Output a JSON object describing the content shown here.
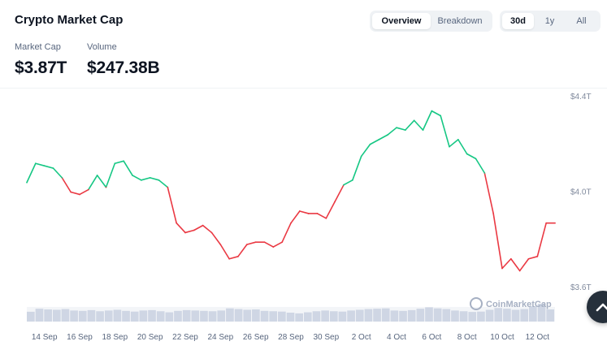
{
  "header": {
    "title": "Crypto Market Cap"
  },
  "view_tabs": [
    {
      "label": "Overview",
      "active": true
    },
    {
      "label": "Breakdown",
      "active": false
    }
  ],
  "range_tabs": [
    {
      "label": "30d",
      "active": true
    },
    {
      "label": "1y",
      "active": false
    },
    {
      "label": "All",
      "active": false
    }
  ],
  "stats": {
    "market_cap": {
      "label": "Market Cap",
      "value": "$3.87T"
    },
    "volume": {
      "label": "Volume",
      "value": "$247.38B"
    }
  },
  "watermark": "CoinMarketCap",
  "scroll_top_icon": "chevron-up-icon",
  "colors": {
    "up": "#16c784",
    "down": "#ea3943",
    "volume": "#cfd6e4"
  },
  "chart_data": {
    "type": "line",
    "y_tick_labels": [
      "$4.4T",
      "$4.0T",
      "$3.6T"
    ],
    "y_tick_values": [
      4.4,
      4.0,
      3.6
    ],
    "x_tick_labels": [
      "14 Sep",
      "16 Sep",
      "18 Sep",
      "20 Sep",
      "22 Sep",
      "24 Sep",
      "26 Sep",
      "28 Sep",
      "30 Sep",
      "2 Oct",
      "4 Oct",
      "6 Oct",
      "8 Oct",
      "10 Oct",
      "12 Oct"
    ],
    "x_tick_days": [
      1,
      3,
      5,
      7,
      9,
      11,
      13,
      15,
      17,
      19,
      21,
      23,
      25,
      27,
      29
    ],
    "ylim": [
      3.6,
      4.4
    ],
    "xlim": [
      0,
      30
    ],
    "reference_value": 4.03,
    "series": [
      {
        "x": [
          0,
          0.5,
          1,
          1.5,
          2,
          2.5,
          3,
          3.5,
          4,
          4.5,
          5,
          5.5,
          6,
          6.5,
          7,
          7.5,
          8,
          8.5,
          9,
          9.5,
          10,
          10.5,
          11,
          11.5,
          12,
          12.5,
          13,
          13.5,
          14,
          14.5,
          15,
          15.5,
          16,
          16.5,
          17,
          17.5,
          18,
          18.5,
          19,
          19.5,
          20,
          20.5,
          21,
          21.5,
          22,
          22.5,
          23,
          23.5,
          24,
          24.5,
          25,
          25.5,
          26,
          26.5,
          27,
          27.5,
          28,
          28.5,
          29,
          29.5,
          30
        ],
        "values": [
          4.04,
          4.12,
          4.11,
          4.1,
          4.06,
          4.0,
          3.99,
          4.01,
          4.07,
          4.02,
          4.12,
          4.13,
          4.07,
          4.05,
          4.06,
          4.05,
          4.02,
          3.87,
          3.83,
          3.84,
          3.86,
          3.83,
          3.78,
          3.72,
          3.73,
          3.78,
          3.79,
          3.79,
          3.77,
          3.79,
          3.87,
          3.92,
          3.91,
          3.91,
          3.89,
          3.96,
          4.03,
          4.05,
          4.15,
          4.2,
          4.22,
          4.24,
          4.27,
          4.26,
          4.3,
          4.26,
          4.34,
          4.32,
          4.19,
          4.22,
          4.16,
          4.14,
          4.08,
          3.91,
          3.68,
          3.72,
          3.67,
          3.72,
          3.73,
          3.87,
          3.87
        ]
      }
    ],
    "volume": [
      0.55,
      0.72,
      0.68,
      0.66,
      0.7,
      0.62,
      0.6,
      0.64,
      0.58,
      0.62,
      0.66,
      0.6,
      0.56,
      0.62,
      0.64,
      0.58,
      0.52,
      0.6,
      0.64,
      0.62,
      0.6,
      0.58,
      0.62,
      0.74,
      0.7,
      0.66,
      0.68,
      0.6,
      0.58,
      0.56,
      0.5,
      0.46,
      0.52,
      0.58,
      0.62,
      0.58,
      0.56,
      0.62,
      0.66,
      0.7,
      0.72,
      0.74,
      0.62,
      0.6,
      0.64,
      0.72,
      0.8,
      0.74,
      0.7,
      0.62,
      0.58,
      0.54,
      0.56,
      0.66,
      0.76,
      0.72,
      0.66,
      0.7,
      0.86,
      1.0,
      0.68
    ]
  }
}
